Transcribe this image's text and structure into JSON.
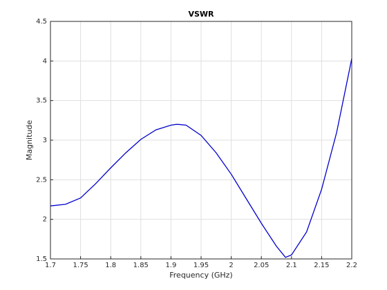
{
  "chart_data": {
    "type": "line",
    "title": "VSWR",
    "x_label": "Frequency (GHz)",
    "y_label": "Magnitude",
    "x": [
      1.7,
      1.725,
      1.75,
      1.775,
      1.8,
      1.825,
      1.85,
      1.875,
      1.9,
      1.91,
      1.925,
      1.95,
      1.975,
      2.0,
      2.025,
      2.05,
      2.075,
      2.09,
      2.1,
      2.125,
      2.15,
      2.175,
      2.2
    ],
    "series": [
      {
        "name": "VSWR",
        "color": "#0000cc",
        "values": [
          2.17,
          2.19,
          2.27,
          2.45,
          2.65,
          2.84,
          3.01,
          3.13,
          3.19,
          3.2,
          3.19,
          3.06,
          2.84,
          2.57,
          2.26,
          1.95,
          1.66,
          1.52,
          1.55,
          1.84,
          2.38,
          3.1,
          4.03
        ]
      }
    ],
    "xlim": [
      1.7,
      2.2
    ],
    "xticks": [
      1.7,
      1.75,
      1.8,
      1.85,
      1.9,
      1.95,
      2,
      2.05,
      2.1,
      2.15,
      2.2
    ],
    "ylim": [
      1.5,
      4.5
    ],
    "yticks": [
      1.5,
      2,
      2.5,
      3,
      3.5,
      4,
      4.5
    ],
    "grid": true
  }
}
